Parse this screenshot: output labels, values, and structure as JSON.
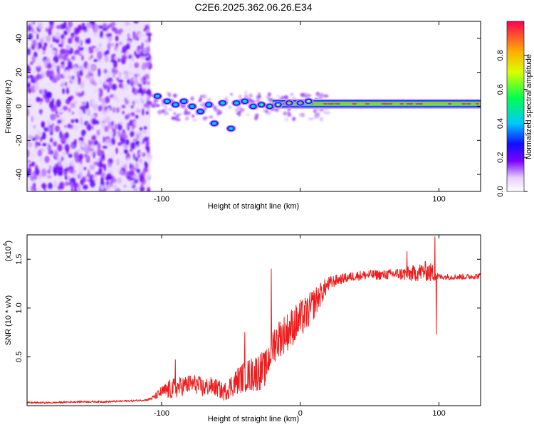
{
  "figure_title": "C2E6.2025.362.06.26.E34",
  "colors": {
    "snr_line": "#ee1c1c",
    "frame": "#000000"
  },
  "chart_data": [
    {
      "type": "heatmap",
      "title": "C2E6.2025.362.06.26.E34",
      "xlabel": "Height of straight line (km)",
      "ylabel": "Frequency (Hz)",
      "xlim": [
        -197,
        130
      ],
      "ylim": [
        -50,
        50
      ],
      "xticks": [
        -100,
        0,
        100
      ],
      "xtick_labels": [
        "-100",
        "",
        "100"
      ],
      "yticks": [
        -40,
        -20,
        0,
        20,
        40
      ],
      "ytick_labels": [
        "-40",
        "-20",
        "0",
        "20",
        "40"
      ],
      "colorbar": {
        "label": "Normalized spectral amplitude",
        "range": [
          0,
          1
        ],
        "ticks": [
          0.0,
          0.2,
          0.4,
          0.6,
          0.8
        ],
        "tick_labels": [
          "0.0",
          "0.2",
          "0.4",
          "0.6",
          "0.8"
        ]
      },
      "noise_region": {
        "x_range": [
          -197,
          -108
        ],
        "freq_range": [
          -50,
          50
        ],
        "amplitude": 0.15
      },
      "features": [
        {
          "x": -103,
          "freq": 6,
          "amplitude": 0.45
        },
        {
          "x": -96,
          "freq": 3,
          "amplitude": 0.5
        },
        {
          "x": -90,
          "freq": 1,
          "amplitude": 0.45
        },
        {
          "x": -84,
          "freq": 3,
          "amplitude": 0.45
        },
        {
          "x": -78,
          "freq": 0,
          "amplitude": 0.45
        },
        {
          "x": -72,
          "freq": -3,
          "amplitude": 0.4
        },
        {
          "x": -66,
          "freq": 1,
          "amplitude": 0.4
        },
        {
          "x": -62,
          "freq": -10,
          "amplitude": 0.45
        },
        {
          "x": -56,
          "freq": 2,
          "amplitude": 0.5
        },
        {
          "x": -50,
          "freq": -13,
          "amplitude": 0.45
        },
        {
          "x": -46,
          "freq": 2,
          "amplitude": 0.5
        },
        {
          "x": -40,
          "freq": 3,
          "amplitude": 0.55
        },
        {
          "x": -34,
          "freq": 0,
          "amplitude": 0.5
        },
        {
          "x": -28,
          "freq": 1,
          "amplitude": 0.6
        },
        {
          "x": -22,
          "freq": 0,
          "amplitude": 0.6
        },
        {
          "x": -16,
          "freq": 1,
          "amplitude": 0.7
        },
        {
          "x": -8,
          "freq": 2,
          "amplitude": 0.8
        },
        {
          "x": 0,
          "freq": 2,
          "amplitude": 0.85
        },
        {
          "x": 6,
          "freq": 3,
          "amplitude": 0.7
        }
      ],
      "ridge": {
        "x_range": [
          -20,
          130
        ],
        "freq": 1.5,
        "amplitude": 0.95
      }
    },
    {
      "type": "line",
      "xlabel": "Height of straight line (km)",
      "ylabel": "SNR (10 * v/v)",
      "y_multiplier_label": "(x10",
      "y_multiplier_exp": "4",
      "y_multiplier_close": ")",
      "xlim": [
        -197,
        130
      ],
      "ylim": [
        0,
        1.75
      ],
      "xticks": [
        -100,
        0,
        100
      ],
      "xtick_labels": [
        "-100",
        "0",
        "100"
      ],
      "yticks": [
        0.5,
        1.0,
        1.5
      ],
      "ytick_labels": [
        "0.5",
        "1.0",
        "1.5"
      ],
      "series": [
        {
          "name": "SNR",
          "x": [
            -197,
            -180,
            -160,
            -140,
            -120,
            -110,
            -105,
            -100,
            -95,
            -90,
            -85,
            -80,
            -75,
            -70,
            -65,
            -60,
            -55,
            -50,
            -45,
            -40,
            -35,
            -30,
            -25,
            -20,
            -15,
            -10,
            -5,
            0,
            5,
            10,
            15,
            20,
            25,
            30,
            40,
            50,
            60,
            70,
            80,
            90,
            95,
            100,
            110,
            120,
            130
          ],
          "y": [
            0.03,
            0.03,
            0.04,
            0.04,
            0.05,
            0.06,
            0.09,
            0.14,
            0.16,
            0.18,
            0.2,
            0.22,
            0.22,
            0.18,
            0.2,
            0.18,
            0.14,
            0.2,
            0.26,
            0.3,
            0.32,
            0.35,
            0.38,
            0.62,
            0.7,
            0.75,
            0.82,
            0.88,
            0.95,
            1.05,
            1.15,
            1.24,
            1.28,
            1.3,
            1.33,
            1.34,
            1.34,
            1.35,
            1.35,
            1.38,
            1.36,
            1.32,
            1.32,
            1.32,
            1.33
          ],
          "noise_amplitude": [
            0.01,
            0.01,
            0.01,
            0.01,
            0.01,
            0.01,
            0.03,
            0.06,
            0.1,
            0.11,
            0.1,
            0.1,
            0.1,
            0.1,
            0.09,
            0.09,
            0.09,
            0.12,
            0.14,
            0.16,
            0.18,
            0.2,
            0.18,
            0.2,
            0.2,
            0.2,
            0.2,
            0.2,
            0.18,
            0.16,
            0.12,
            0.08,
            0.06,
            0.05,
            0.05,
            0.05,
            0.05,
            0.06,
            0.08,
            0.1,
            0.1,
            0.03,
            0.03,
            0.03,
            0.03
          ],
          "spikes": [
            {
              "x": -21,
              "y": 1.4
            },
            {
              "x": -40,
              "y": 0.75
            },
            {
              "x": -90,
              "y": 0.47
            },
            {
              "x": 77,
              "y": 1.58
            },
            {
              "x": 97,
              "y": 1.73
            },
            {
              "x": 98,
              "y": 0.73
            }
          ]
        }
      ]
    }
  ]
}
